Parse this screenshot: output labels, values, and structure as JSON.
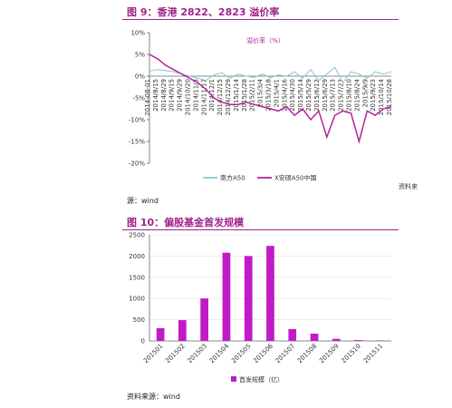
{
  "fig1": {
    "title": "图 9：香港 2822、2823 溢价率",
    "source": "源：wind",
    "side_note": "资料来"
  },
  "fig2": {
    "title": "图 10：偏股基金首发规模",
    "source": "资料来源：wind"
  },
  "colors": {
    "accent": "#a0238d",
    "line1": "#8ec9d6",
    "line2": "#b0269b",
    "bar": "#c11ac9"
  },
  "chart_data": [
    {
      "type": "line",
      "title": "",
      "annotation": "溢价率（%）",
      "ylim": [
        -20,
        10
      ],
      "yticks": [
        10,
        5,
        0,
        -5,
        -10,
        -15,
        -20
      ],
      "ytick_labels": [
        "10%",
        "5%",
        "0%",
        "-5%",
        "-10%",
        "-15%",
        "-20%"
      ],
      "x_tick_labels": [
        "2014-08-01",
        "2014/8/15",
        "2014/8/29",
        "2014/9/15",
        "2014/9/29",
        "2014/10/20",
        "2014/11/3",
        "2014/11/17",
        "2014/12/1",
        "2014/12/15",
        "2014/12/29",
        "2015/1/14",
        "2015/1/28",
        "2015/2/11",
        "2015/3/4",
        "2015/3/18",
        "2015/4/1",
        "2015/4/16",
        "2015/4/30",
        "2015/5/14",
        "2015/5/29",
        "2015/6/12",
        "2015/6/29",
        "2015/7/13",
        "2015/7/27",
        "2015/8/10",
        "2015/8/24",
        "2015/9/9",
        "2015/9/23",
        "2015/10/14",
        "2015/10/28"
      ],
      "legend_position": "bottom",
      "series": [
        {
          "name": "南方A50",
          "values": [
            1.2,
            1.5,
            1.3,
            1.0,
            0.5,
            0.0,
            -0.5,
            -1.0,
            0.3,
            0.8,
            -0.5,
            0.5,
            0.0,
            -0.3,
            0.5,
            -0.4,
            0.3,
            0.0,
            1.0,
            -0.5,
            1.5,
            -1.0,
            0.5,
            2.0,
            -1.5,
            1.0,
            0.5,
            -0.5,
            1.0,
            0.5,
            1.0
          ]
        },
        {
          "name": "X安硕A50中国",
          "values": [
            5.0,
            4.0,
            2.5,
            1.5,
            0.5,
            -0.5,
            -1.5,
            -3.0,
            -5.0,
            -6.0,
            -6.5,
            -6.5,
            -6.0,
            -6.5,
            -7.0,
            -7.5,
            -8.0,
            -7.0,
            -9.0,
            -7.5,
            -10.0,
            -8.0,
            -14.0,
            -9.0,
            -8.0,
            -8.5,
            -15.0,
            -8.0,
            -9.0,
            -7.5,
            -7.0
          ]
        }
      ]
    },
    {
      "type": "bar",
      "title": "",
      "categories": [
        "201501",
        "201502",
        "201503",
        "201504",
        "201505",
        "201506",
        "201507",
        "201508",
        "201509",
        "201510",
        "201511"
      ],
      "values": [
        300,
        490,
        1000,
        2080,
        2000,
        2240,
        280,
        170,
        50,
        20,
        10
      ],
      "ylim": [
        0,
        2500
      ],
      "yticks": [
        0,
        500,
        1000,
        1500,
        2000,
        2500
      ],
      "legend": [
        "首发规模（亿）"
      ],
      "legend_position": "bottom"
    }
  ]
}
